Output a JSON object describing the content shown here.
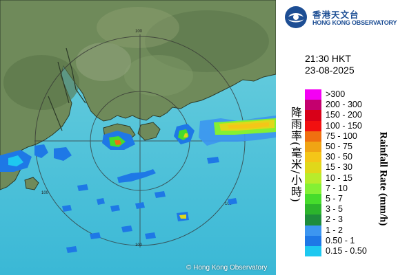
{
  "header": {
    "agency_name_zh": "香港天文台",
    "agency_name_en": "HONG KONG OBSERVATORY"
  },
  "timestamp": {
    "time": "21:30 HKT",
    "date": "23-08-2025"
  },
  "map": {
    "range_ring_labels": [
      "100",
      "100",
      "100",
      "100"
    ],
    "copyright": "© Hong Kong Observatory"
  },
  "legend": {
    "title_zh": "降雨率(毫米/小時)",
    "title_en": "Rainfall Rate (mm/h)",
    "bins": [
      {
        "label": ">300",
        "color": "#f400f4"
      },
      {
        "label": "200 - 300",
        "color": "#c4006e"
      },
      {
        "label": "150 - 200",
        "color": "#d80018"
      },
      {
        "label": "100 - 150",
        "color": "#f21010"
      },
      {
        "label": "75 - 100",
        "color": "#f07010"
      },
      {
        "label": "50 - 75",
        "color": "#f0a414"
      },
      {
        "label": "30 - 50",
        "color": "#f4c618"
      },
      {
        "label": "15 - 30",
        "color": "#e0d81a"
      },
      {
        "label": "10 - 15",
        "color": "#b8ec2c"
      },
      {
        "label": "7 - 10",
        "color": "#84f034"
      },
      {
        "label": "5 - 7",
        "color": "#46dc2c"
      },
      {
        "label": "3 - 5",
        "color": "#2cb42c"
      },
      {
        "label": "2 - 3",
        "color": "#1e8c3c"
      },
      {
        "label": "1 - 2",
        "color": "#3c96f0"
      },
      {
        "label": "0.50 - 1",
        "color": "#1e78e6"
      },
      {
        "label": "0.15 - 0.50",
        "color": "#1ec8f0"
      }
    ]
  }
}
